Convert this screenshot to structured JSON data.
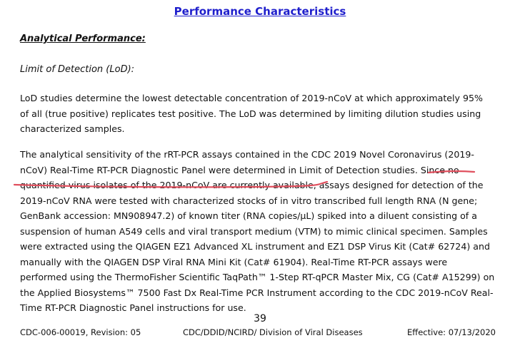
{
  "document": {
    "title": "Performance Characteristics",
    "section_heading": "Analytical Performance:",
    "subheading": "Limit of Detection (LoD):",
    "paragraph1_lines": [
      "LoD studies determine the lowest detectable concentration of 2019-nCoV at which approximately 95%",
      "of all (true positive) replicates test positive.  The LoD was determined by limiting dilution studies using",
      "characterized samples."
    ],
    "paragraph2_lines": [
      "The analytical sensitivity of the rRT-PCR assays contained in the CDC 2019 Novel Coronavirus (2019-",
      "nCoV) Real-Time RT-PCR Diagnostic Panel were determined in Limit of Detection studies. Since no",
      "quantified virus isolates of the 2019-nCoV are currently available, assays designed for detection of the",
      "2019-nCoV RNA were tested with characterized stocks of in vitro transcribed full length RNA (N gene;",
      "GenBank accession: MN908947.2) of known titer (RNA copies/µL) spiked into a diluent consisting of a",
      "suspension of human A549 cells and viral transport medium (VTM) to mimic clinical specimen. Samples",
      "were extracted using the QIAGEN EZ1 Advanced XL instrument and EZ1 DSP Virus Kit (Cat# 62724) and",
      "manually with the QIAGEN DSP Viral RNA Mini Kit (Cat# 61904). Real-Time RT-PCR assays were",
      "performed using the ThermoFisher Scientific TaqPath™ 1-Step RT-qPCR Master Mix, CG (Cat# A15299) on",
      "the Applied Biosystems™ 7500 Fast Dx Real-Time PCR Instrument according to the CDC 2019-nCoV Real-",
      "Time RT-PCR Diagnostic Panel instructions for use."
    ],
    "page_number": "39",
    "footer_left": "CDC-006-00019, Revision: 05",
    "footer_center": "CDC/DDID/NCIRD/ Division of Viral Diseases",
    "footer_right": "Effective: 07/13/2020"
  },
  "colors": {
    "title": "#1f1fcc",
    "markup_underline": "#e0505e"
  }
}
